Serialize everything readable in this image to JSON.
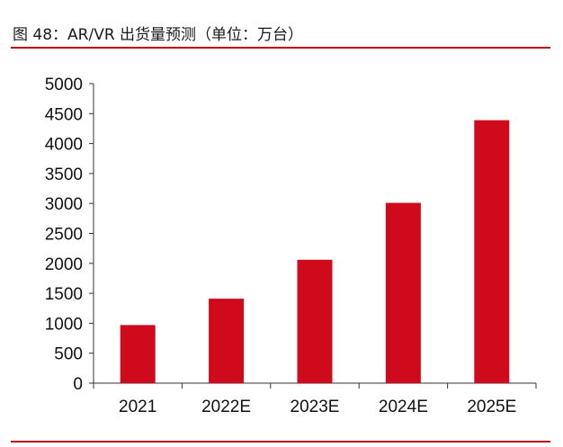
{
  "header": {
    "title": "图 48：AR/VR 出货量预测（单位：万台）"
  },
  "colors": {
    "accent": "#c0000a",
    "bar": "#cf0a1c"
  },
  "chart_data": {
    "type": "bar",
    "categories": [
      "2021",
      "2022E",
      "2023E",
      "2024E",
      "2025E"
    ],
    "values": [
      970,
      1410,
      2060,
      3010,
      4390
    ],
    "title": "图 48：AR/VR 出货量预测（单位：万台）",
    "xlabel": "",
    "ylabel": "",
    "ylim": [
      0,
      5000
    ],
    "yticks": [
      0,
      500,
      1000,
      1500,
      2000,
      2500,
      3000,
      3500,
      4000,
      4500,
      5000
    ],
    "grid": false,
    "legend": "none"
  }
}
